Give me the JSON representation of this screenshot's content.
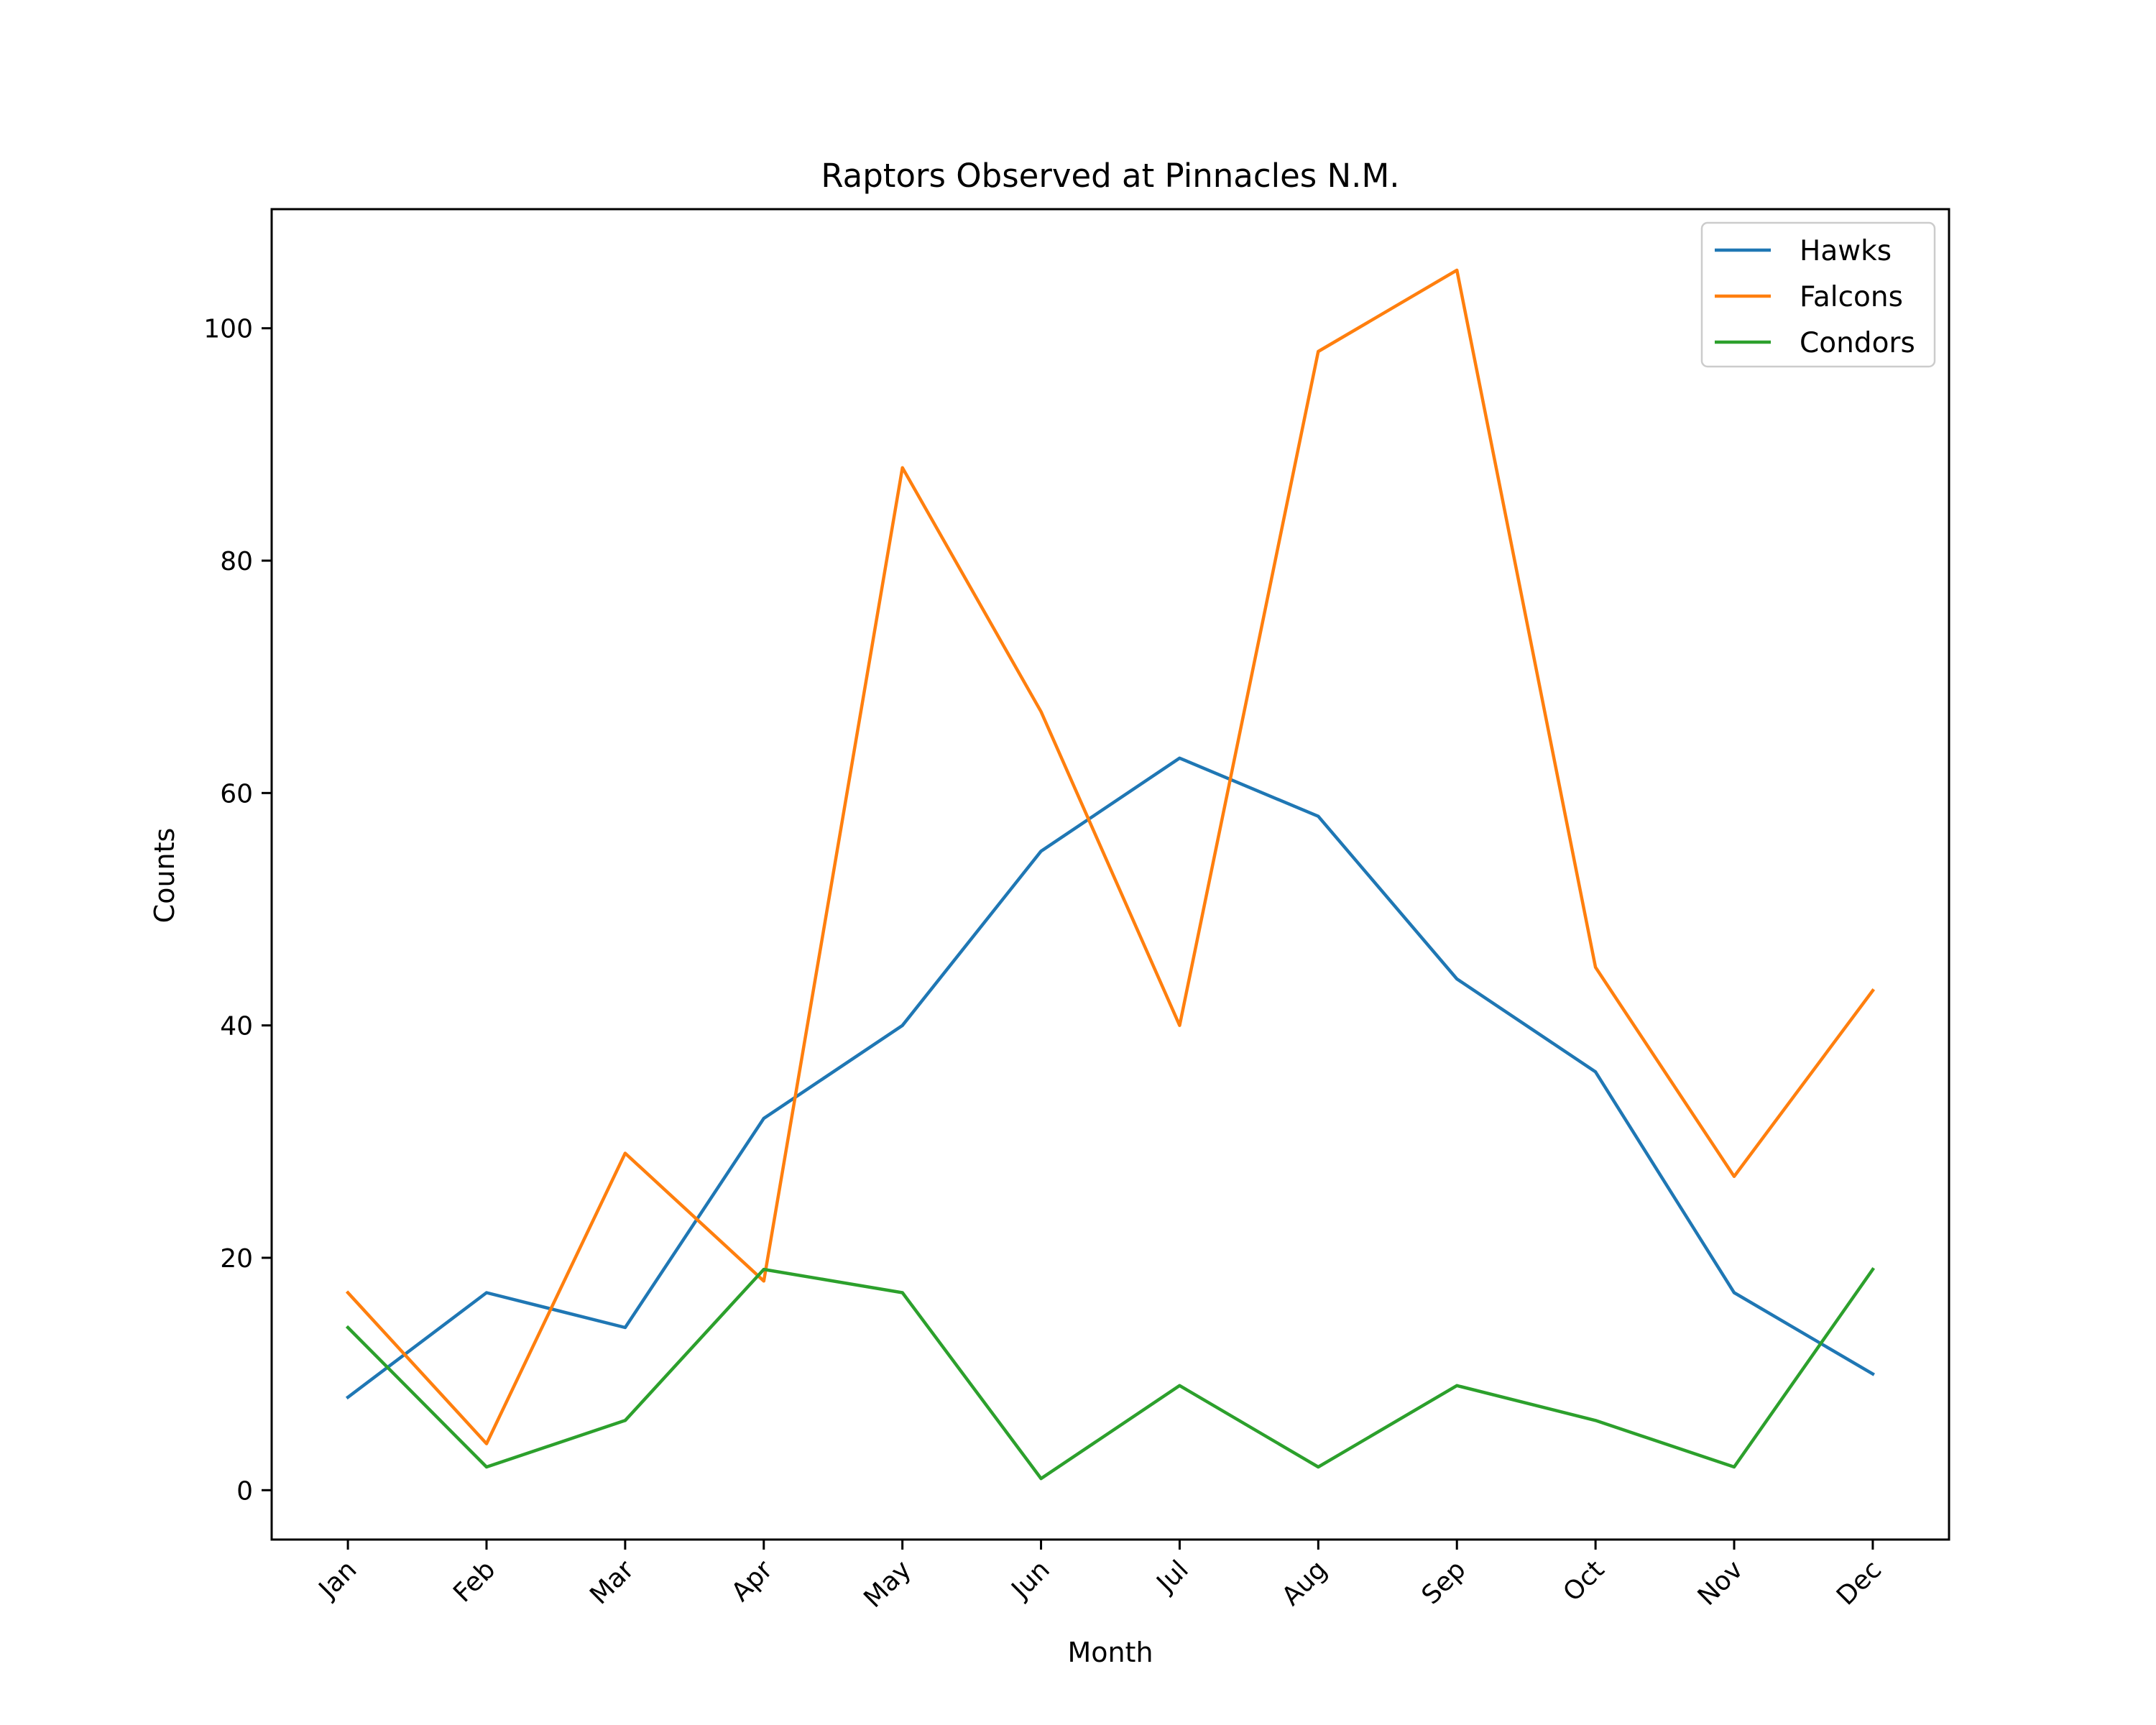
{
  "chart_data": {
    "type": "line",
    "title": "Raptors Observed at Pinnacles N.M.",
    "xlabel": "Month",
    "ylabel": "Counts",
    "categories": [
      "Jan",
      "Feb",
      "Mar",
      "Apr",
      "May",
      "Jun",
      "Jul",
      "Aug",
      "Sep",
      "Oct",
      "Nov",
      "Dec"
    ],
    "ylim": [
      -4.25,
      110.25
    ],
    "yticks": [
      0,
      20,
      40,
      60,
      80,
      100
    ],
    "legend": "top-right",
    "grid": false,
    "series": [
      {
        "name": "Hawks",
        "color": "#1f77b4",
        "values": [
          8,
          17,
          14,
          32,
          40,
          55,
          63,
          58,
          44,
          36,
          17,
          10
        ]
      },
      {
        "name": "Falcons",
        "color": "#ff7f0e",
        "values": [
          17,
          4,
          29,
          18,
          88,
          67,
          40,
          98,
          105,
          45,
          27,
          43
        ]
      },
      {
        "name": "Condors",
        "color": "#2ca02c",
        "values": [
          14,
          2,
          6,
          19,
          17,
          1,
          9,
          2,
          9,
          6,
          2,
          19
        ]
      }
    ]
  }
}
